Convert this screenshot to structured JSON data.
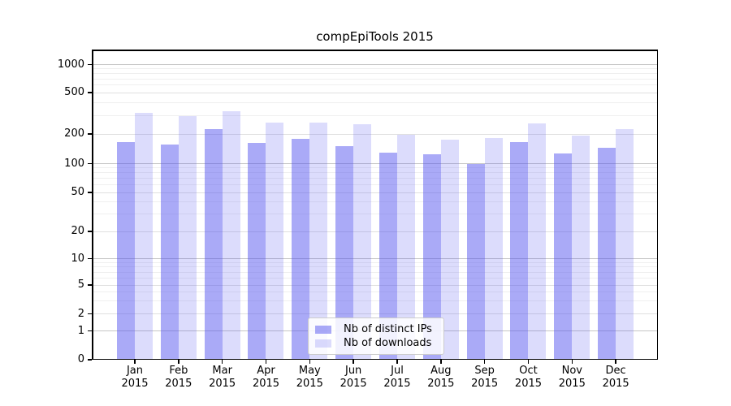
{
  "chart_data": {
    "type": "bar",
    "title": "compEpiTools 2015",
    "categories": [
      "Jan",
      "Feb",
      "Mar",
      "Apr",
      "May",
      "Jun",
      "Jul",
      "Aug",
      "Sep",
      "Oct",
      "Nov",
      "Dec"
    ],
    "xtick_second_line": "2015",
    "series": [
      {
        "name": "Nb of distinct IPs",
        "values": [
          165,
          155,
          222,
          163,
          180,
          150,
          130,
          125,
          100,
          166,
          126,
          144
        ],
        "fill": "rgba(82,82,238,0.49)",
        "approx_hex": "#aaaaf6"
      },
      {
        "name": "Nb of downloads",
        "values": [
          320,
          298,
          330,
          255,
          258,
          249,
          195,
          175,
          181,
          253,
          191,
          222
        ],
        "fill": "rgba(82,82,238,0.20)",
        "approx_hex": "#dcdcf8"
      }
    ],
    "xlabel": "",
    "ylabel": "",
    "yscale": "symlog",
    "ytick_labels": [
      "0",
      "1",
      "2",
      "5",
      "10",
      "20",
      "50",
      "100",
      "200",
      "500",
      "1000"
    ],
    "ylim": [
      0,
      1400
    ],
    "legend": {
      "position": "lower center",
      "entries": [
        "Nb of distinct IPs",
        "Nb of downloads"
      ]
    },
    "grid": {
      "which": "both",
      "major_color": "#c6c6c6",
      "mid_color": "#e0e0e0",
      "minor_color": "#efefef"
    }
  }
}
